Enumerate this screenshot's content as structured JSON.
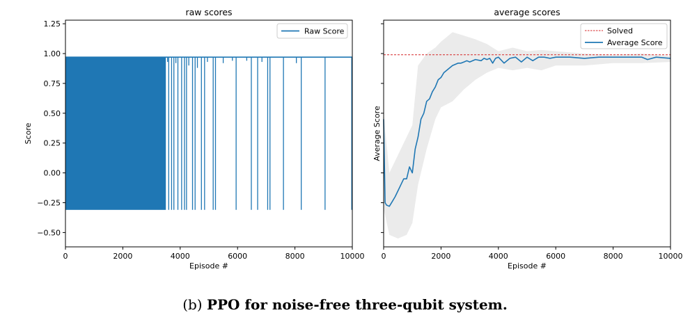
{
  "caption": {
    "label": "(b)",
    "text": "PPO for noise-free three-qubit system."
  },
  "colors": {
    "series": "#1f77b4",
    "solved": "#d62728",
    "band": "#d9d9d9"
  },
  "chart_data": [
    {
      "type": "line",
      "title": "raw scores",
      "xlabel": "Episode #",
      "ylabel": "Score",
      "xlim": [
        0,
        10000
      ],
      "ylim": [
        -0.62,
        1.28
      ],
      "x_ticks": [
        0,
        2000,
        4000,
        6000,
        8000,
        10000
      ],
      "y_ticks": [
        -0.5,
        -0.25,
        0.0,
        0.25,
        0.5,
        0.75,
        1.0,
        1.25
      ],
      "y_tick_labels": [
        "−0.50",
        "−0.25",
        "0.00",
        "0.25",
        "0.50",
        "0.75",
        "1.00",
        "1.25"
      ],
      "legend": {
        "position": "top-right",
        "entries": [
          "Raw Score"
        ]
      },
      "series": [
        {
          "name": "Raw Score",
          "upper": 0.97,
          "lower": -0.31,
          "dense_until": 3500,
          "dips": [
            {
              "x": 30,
              "y": 0.92
            },
            {
              "x": 3560,
              "y": 0.93
            },
            {
              "x": 3600,
              "y": -0.31
            },
            {
              "x": 3700,
              "y": -0.31
            },
            {
              "x": 3780,
              "y": -0.31
            },
            {
              "x": 3850,
              "y": 0.92
            },
            {
              "x": 3920,
              "y": -0.31
            },
            {
              "x": 4050,
              "y": -0.31
            },
            {
              "x": 4150,
              "y": -0.31
            },
            {
              "x": 4220,
              "y": -0.31
            },
            {
              "x": 4300,
              "y": 0.9
            },
            {
              "x": 4430,
              "y": -0.31
            },
            {
              "x": 4520,
              "y": -0.31
            },
            {
              "x": 4600,
              "y": 0.88
            },
            {
              "x": 4740,
              "y": -0.31
            },
            {
              "x": 4850,
              "y": -0.31
            },
            {
              "x": 4950,
              "y": 0.93
            },
            {
              "x": 5150,
              "y": -0.31
            },
            {
              "x": 5230,
              "y": -0.31
            },
            {
              "x": 5500,
              "y": 0.92
            },
            {
              "x": 5820,
              "y": 0.94
            },
            {
              "x": 5950,
              "y": -0.31
            },
            {
              "x": 6320,
              "y": 0.94
            },
            {
              "x": 6480,
              "y": -0.31
            },
            {
              "x": 6700,
              "y": -0.31
            },
            {
              "x": 6850,
              "y": 0.93
            },
            {
              "x": 7050,
              "y": -0.31
            },
            {
              "x": 7130,
              "y": -0.31
            },
            {
              "x": 7600,
              "y": -0.31
            },
            {
              "x": 8050,
              "y": 0.92
            },
            {
              "x": 8220,
              "y": -0.31
            },
            {
              "x": 9050,
              "y": -0.31
            },
            {
              "x": 9980,
              "y": -0.31
            }
          ]
        }
      ]
    },
    {
      "type": "line",
      "title": "average scores",
      "xlabel": "Episode #",
      "ylabel": "Average Score",
      "xlim": [
        0,
        10000
      ],
      "ylim": [
        -0.62,
        1.28
      ],
      "x_ticks": [
        0,
        2000,
        4000,
        6000,
        8000,
        10000
      ],
      "legend": {
        "position": "top-right",
        "entries": [
          "Solved",
          "Average Score"
        ]
      },
      "solved_value": 0.99,
      "series": [
        {
          "name": "Average Score",
          "x": [
            0,
            50,
            100,
            200,
            300,
            400,
            500,
            600,
            700,
            800,
            900,
            1000,
            1100,
            1200,
            1300,
            1400,
            1500,
            1600,
            1700,
            1800,
            1900,
            2000,
            2100,
            2200,
            2300,
            2400,
            2500,
            2600,
            2700,
            2800,
            2900,
            3000,
            3200,
            3400,
            3500,
            3600,
            3700,
            3800,
            3900,
            4000,
            4200,
            4400,
            4600,
            4800,
            5000,
            5200,
            5400,
            5600,
            5800,
            6000,
            6500,
            7000,
            7500,
            8000,
            8500,
            9000,
            9200,
            9500,
            10000
          ],
          "y": [
            0.45,
            -0.25,
            -0.27,
            -0.28,
            -0.24,
            -0.2,
            -0.15,
            -0.1,
            -0.05,
            -0.05,
            0.05,
            0.0,
            0.2,
            0.3,
            0.45,
            0.5,
            0.6,
            0.62,
            0.68,
            0.72,
            0.78,
            0.8,
            0.84,
            0.86,
            0.88,
            0.9,
            0.91,
            0.92,
            0.92,
            0.93,
            0.94,
            0.93,
            0.95,
            0.94,
            0.96,
            0.95,
            0.96,
            0.92,
            0.96,
            0.97,
            0.92,
            0.96,
            0.97,
            0.93,
            0.97,
            0.94,
            0.97,
            0.97,
            0.96,
            0.97,
            0.97,
            0.96,
            0.97,
            0.97,
            0.97,
            0.97,
            0.95,
            0.97,
            0.96
          ]
        }
      ],
      "band": {
        "x": [
          0,
          200,
          500,
          800,
          1000,
          1200,
          1500,
          1800,
          2000,
          2400,
          2800,
          3200,
          3600,
          4000,
          4500,
          5000,
          5500,
          6000,
          7000,
          8000,
          9000,
          10000
        ],
        "upper": [
          0.5,
          0.0,
          0.15,
          0.3,
          0.4,
          0.9,
          1.0,
          1.05,
          1.1,
          1.18,
          1.15,
          1.12,
          1.08,
          1.02,
          1.05,
          1.02,
          1.03,
          1.02,
          1.0,
          0.99,
          1.0,
          0.98
        ],
        "lower": [
          -0.3,
          -0.52,
          -0.55,
          -0.52,
          -0.42,
          -0.1,
          0.2,
          0.45,
          0.55,
          0.6,
          0.7,
          0.78,
          0.84,
          0.88,
          0.86,
          0.88,
          0.86,
          0.9,
          0.9,
          0.92,
          0.92,
          0.93
        ]
      }
    }
  ]
}
